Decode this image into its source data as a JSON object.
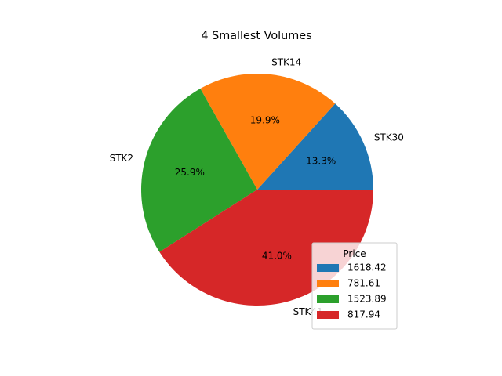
{
  "chart_data": {
    "type": "pie",
    "title": "4 Smallest Volumes",
    "slices": [
      {
        "label": "STK30",
        "percent_label": "13.3%",
        "value": 13.3,
        "color": "#1f77b4"
      },
      {
        "label": "STK14",
        "percent_label": "19.9%",
        "value": 19.9,
        "color": "#ff7f0e"
      },
      {
        "label": "STK2",
        "percent_label": "25.9%",
        "value": 25.9,
        "color": "#2ca02c"
      },
      {
        "label": "STK41",
        "percent_label": "41.0%",
        "value": 41.0,
        "color": "#d62728"
      }
    ],
    "legend": {
      "title": "Price",
      "placement": "lower-right",
      "entries": [
        {
          "label": "1618.42",
          "color": "#1f77b4"
        },
        {
          "label": "781.61",
          "color": "#ff7f0e"
        },
        {
          "label": "1523.89",
          "color": "#2ca02c"
        },
        {
          "label": "817.94",
          "color": "#d62728"
        }
      ]
    },
    "start_angle_deg": 0,
    "direction": "counterclockwise"
  }
}
